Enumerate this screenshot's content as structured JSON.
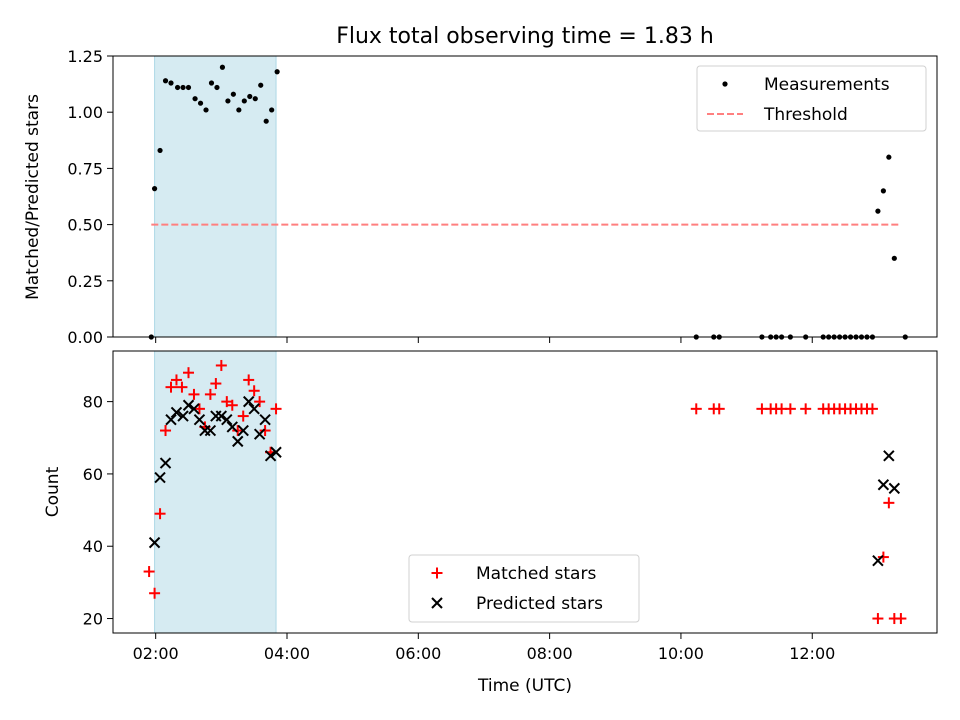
{
  "chart_data": [
    {
      "type": "scatter",
      "title": "Flux total observing time = 1.83 h",
      "xlabel": "",
      "ylabel": "Matched/Predicted stars",
      "xlim": [
        "01:21",
        "13:54"
      ],
      "ylim": [
        0,
        1.25
      ],
      "yticks": [
        "0.00",
        "0.25",
        "0.50",
        "0.75",
        "1.00",
        "1.25"
      ],
      "xticks": [
        "02:00",
        "04:00",
        "06:00",
        "08:00",
        "10:00",
        "12:00"
      ],
      "shaded_span": [
        "01:59",
        "03:50"
      ],
      "threshold": {
        "name": "Threshold",
        "value": 0.5,
        "x": [
          "01:56",
          "13:20"
        ],
        "color": "#ff7f7f"
      },
      "legend": {
        "position": "top-right"
      },
      "series": [
        {
          "name": "Measurements",
          "color": "#000000",
          "marker": "dot",
          "points": [
            [
              "01:56",
              0.0
            ],
            [
              "01:59",
              0.66
            ],
            [
              "02:04",
              0.83
            ],
            [
              "02:09",
              1.14
            ],
            [
              "02:14",
              1.13
            ],
            [
              "02:20",
              1.11
            ],
            [
              "02:25",
              1.11
            ],
            [
              "02:30",
              1.11
            ],
            [
              "02:36",
              1.06
            ],
            [
              "02:41",
              1.04
            ],
            [
              "02:46",
              1.01
            ],
            [
              "02:51",
              1.13
            ],
            [
              "02:56",
              1.11
            ],
            [
              "03:01",
              1.2
            ],
            [
              "03:06",
              1.05
            ],
            [
              "03:11",
              1.08
            ],
            [
              "03:16",
              1.01
            ],
            [
              "03:21",
              1.05
            ],
            [
              "03:26",
              1.07
            ],
            [
              "03:31",
              1.06
            ],
            [
              "03:36",
              1.12
            ],
            [
              "03:41",
              0.96
            ],
            [
              "03:46",
              1.01
            ],
            [
              "03:51",
              1.18
            ],
            [
              "10:14",
              0.0
            ],
            [
              "10:30",
              0.0
            ],
            [
              "10:35",
              0.0
            ],
            [
              "11:14",
              0.0
            ],
            [
              "11:22",
              0.0
            ],
            [
              "11:27",
              0.0
            ],
            [
              "11:32",
              0.0
            ],
            [
              "11:40",
              0.0
            ],
            [
              "11:54",
              0.0
            ],
            [
              "12:10",
              0.0
            ],
            [
              "12:15",
              0.0
            ],
            [
              "12:20",
              0.0
            ],
            [
              "12:25",
              0.0
            ],
            [
              "12:30",
              0.0
            ],
            [
              "12:35",
              0.0
            ],
            [
              "12:40",
              0.0
            ],
            [
              "12:45",
              0.0
            ],
            [
              "12:50",
              0.0
            ],
            [
              "12:55",
              0.0
            ],
            [
              "13:00",
              0.56
            ],
            [
              "13:05",
              0.65
            ],
            [
              "13:10",
              0.8
            ],
            [
              "13:15",
              0.35
            ],
            [
              "13:25",
              0.0
            ]
          ]
        }
      ]
    },
    {
      "type": "scatter",
      "title": "",
      "xlabel": "Time (UTC)",
      "ylabel": "Count",
      "xlim": [
        "01:21",
        "13:54"
      ],
      "ylim": [
        16,
        94
      ],
      "yticks": [
        "20",
        "40",
        "60",
        "80"
      ],
      "xticks": [
        "02:00",
        "04:00",
        "06:00",
        "08:00",
        "10:00",
        "12:00"
      ],
      "shaded_span": [
        "01:59",
        "03:50"
      ],
      "legend": {
        "position": "bottom-center"
      },
      "series": [
        {
          "name": "Matched stars",
          "color": "#ff0000",
          "marker": "plus",
          "points": [
            [
              "01:54",
              33
            ],
            [
              "01:59",
              27
            ],
            [
              "02:04",
              49
            ],
            [
              "02:09",
              72
            ],
            [
              "02:14",
              84
            ],
            [
              "02:19",
              86
            ],
            [
              "02:24",
              84
            ],
            [
              "02:30",
              88
            ],
            [
              "02:35",
              82
            ],
            [
              "02:40",
              78
            ],
            [
              "02:45",
              73
            ],
            [
              "02:50",
              82
            ],
            [
              "02:55",
              85
            ],
            [
              "03:00",
              90
            ],
            [
              "03:05",
              80
            ],
            [
              "03:10",
              79
            ],
            [
              "03:15",
              72
            ],
            [
              "03:20",
              76
            ],
            [
              "03:25",
              86
            ],
            [
              "03:30",
              83
            ],
            [
              "03:35",
              80
            ],
            [
              "03:40",
              72
            ],
            [
              "03:45",
              66
            ],
            [
              "03:50",
              78
            ],
            [
              "10:14",
              78
            ],
            [
              "10:30",
              78
            ],
            [
              "10:35",
              78
            ],
            [
              "11:14",
              78
            ],
            [
              "11:22",
              78
            ],
            [
              "11:27",
              78
            ],
            [
              "11:32",
              78
            ],
            [
              "11:40",
              78
            ],
            [
              "11:54",
              78
            ],
            [
              "12:10",
              78
            ],
            [
              "12:15",
              78
            ],
            [
              "12:20",
              78
            ],
            [
              "12:25",
              78
            ],
            [
              "12:30",
              78
            ],
            [
              "12:35",
              78
            ],
            [
              "12:40",
              78
            ],
            [
              "12:45",
              78
            ],
            [
              "12:50",
              78
            ],
            [
              "12:55",
              78
            ],
            [
              "13:00",
              20
            ],
            [
              "13:05",
              37
            ],
            [
              "13:10",
              52
            ],
            [
              "13:15",
              20
            ],
            [
              "13:21",
              20
            ]
          ]
        },
        {
          "name": "Predicted stars",
          "color": "#000000",
          "marker": "x",
          "points": [
            [
              "01:59",
              41
            ],
            [
              "02:04",
              59
            ],
            [
              "02:09",
              63
            ],
            [
              "02:14",
              75
            ],
            [
              "02:19",
              77
            ],
            [
              "02:25",
              76
            ],
            [
              "02:30",
              79
            ],
            [
              "02:35",
              78
            ],
            [
              "02:40",
              75
            ],
            [
              "02:45",
              72
            ],
            [
              "02:50",
              72
            ],
            [
              "02:55",
              76
            ],
            [
              "03:00",
              76
            ],
            [
              "03:05",
              75
            ],
            [
              "03:10",
              73
            ],
            [
              "03:15",
              69
            ],
            [
              "03:20",
              72
            ],
            [
              "03:25",
              80
            ],
            [
              "03:30",
              78
            ],
            [
              "03:35",
              71
            ],
            [
              "03:40",
              75
            ],
            [
              "03:45",
              65
            ],
            [
              "03:50",
              66
            ],
            [
              "13:00",
              36
            ],
            [
              "13:05",
              57
            ],
            [
              "13:10",
              65
            ],
            [
              "13:15",
              56
            ]
          ]
        }
      ]
    }
  ]
}
